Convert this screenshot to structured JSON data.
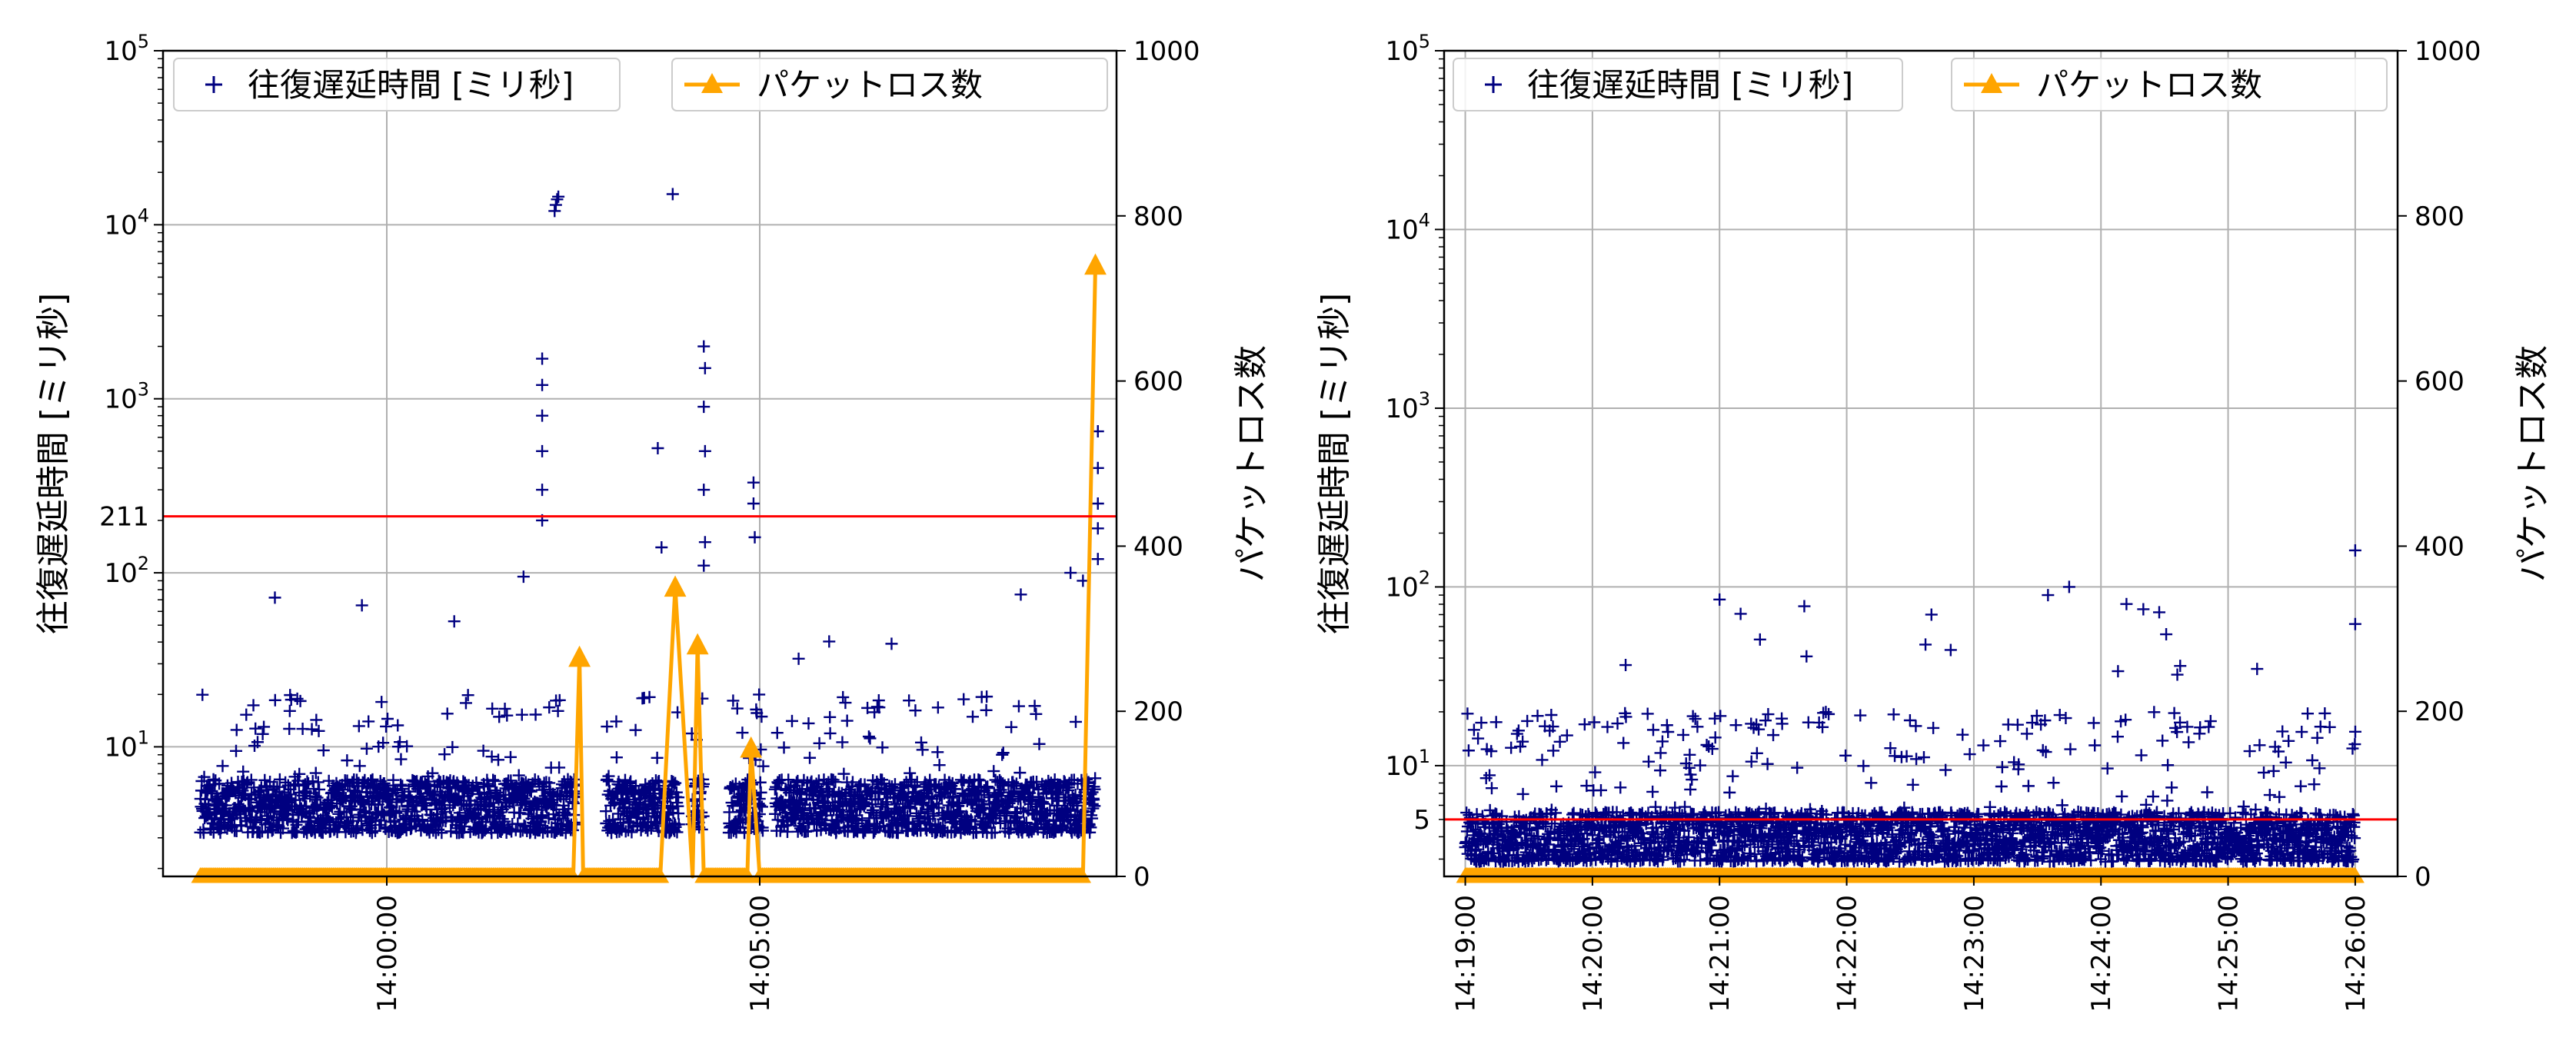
{
  "colors": {
    "rtt": "#000080",
    "loss": "#FFA500",
    "threshold": "#FF0000",
    "grid": "#B0B0B0",
    "axis": "#000000"
  },
  "chart_data": [
    {
      "type": "scatter",
      "ylabel_left": "往復遅延時間 [ミリ秒]",
      "ylabel_right": "パケットロス数",
      "ylog": true,
      "ylim_left": [
        1.8,
        100000
      ],
      "ylim_right": [
        0,
        1000
      ],
      "xlim": [
        "13:57:00",
        "14:09:47"
      ],
      "x_ticks": [
        "14:00:00",
        "14:05:00"
      ],
      "y_ticks_left": [
        {
          "value": 10,
          "base": "10",
          "exp": "1"
        },
        {
          "value": 100,
          "base": "10",
          "exp": "2"
        },
        {
          "value": 1000,
          "base": "10",
          "exp": "3"
        },
        {
          "value": 10000,
          "base": "10",
          "exp": "4"
        },
        {
          "value": 100000,
          "base": "10",
          "exp": "5"
        }
      ],
      "y_ticks_right": [
        "0",
        "200",
        "400",
        "600",
        "800",
        "1000"
      ],
      "y_ticks_right_values": [
        0,
        200,
        400,
        600,
        800,
        1000
      ],
      "grid": true,
      "legend": [
        "往復遅延時間 [ミリ秒]",
        "パケットロス数"
      ],
      "legend_placement": "top",
      "threshold": {
        "value": 211,
        "label": "211"
      },
      "rtt_series": {
        "name": "往復遅延時間 [ミリ秒]",
        "start": "13:57:30",
        "end": "14:09:30",
        "baseline_ms": [
          3.2,
          6.5
        ],
        "gaps": [
          [
            "14:02:33",
            "14:02:56"
          ],
          [
            "14:03:55",
            "14:04:05"
          ],
          [
            "14:04:15",
            "14:04:35"
          ],
          [
            "14:05:03",
            "14:05:12"
          ]
        ],
        "outliers_ms": [
          [
            "14:02:15",
            12000
          ],
          [
            "14:02:16",
            13000
          ],
          [
            "14:02:17",
            14000
          ],
          [
            "14:02:18",
            14500
          ],
          [
            "14:03:50",
            15000
          ],
          [
            "14:03:38",
            520
          ],
          [
            "14:03:41",
            140
          ],
          [
            "14:01:50",
            95
          ],
          [
            "14:02:05",
            1700
          ],
          [
            "14:02:05",
            1200
          ],
          [
            "14:02:05",
            800
          ],
          [
            "14:02:05",
            500
          ],
          [
            "14:02:05",
            300
          ],
          [
            "14:02:05",
            200
          ],
          [
            "14:04:15",
            2000
          ],
          [
            "14:04:16",
            1500
          ],
          [
            "14:04:15",
            900
          ],
          [
            "14:04:16",
            500
          ],
          [
            "14:04:15",
            300
          ],
          [
            "14:04:16",
            150
          ],
          [
            "14:04:15",
            110
          ],
          [
            "14:04:55",
            330
          ],
          [
            "14:04:55",
            250
          ],
          [
            "14:04:56",
            160
          ],
          [
            "14:09:32",
            650
          ],
          [
            "14:09:32",
            400
          ],
          [
            "14:09:32",
            250
          ],
          [
            "14:09:32",
            180
          ],
          [
            "14:09:32",
            120
          ],
          [
            "13:58:30",
            72
          ],
          [
            "13:59:40",
            65
          ],
          [
            "14:08:30",
            75
          ],
          [
            "14:09:10",
            100
          ],
          [
            "14:09:20",
            90
          ]
        ]
      },
      "loss_series": {
        "name": "パケットロス数",
        "points": [
          [
            "13:57:30",
            0
          ],
          [
            "14:02:30",
            0
          ],
          [
            "14:02:35",
            265
          ],
          [
            "14:02:38",
            0
          ],
          [
            "14:03:40",
            0
          ],
          [
            "14:03:52",
            350
          ],
          [
            "14:04:06",
            0
          ],
          [
            "14:04:10",
            280
          ],
          [
            "14:04:15",
            0
          ],
          [
            "14:04:50",
            0
          ],
          [
            "14:04:53",
            155
          ],
          [
            "14:05:00",
            0
          ],
          [
            "14:09:20",
            0
          ],
          [
            "14:09:30",
            740
          ]
        ]
      }
    },
    {
      "type": "scatter",
      "ylabel_left": "往復遅延時間 [ミリ秒]",
      "ylabel_right": "パケットロス数",
      "ylog": true,
      "ylim_left": [
        2.4,
        100000
      ],
      "ylim_right": [
        0,
        1000
      ],
      "xlim": [
        "14:18:50",
        "14:26:20"
      ],
      "x_ticks": [
        "14:19:00",
        "14:20:00",
        "14:21:00",
        "14:22:00",
        "14:23:00",
        "14:24:00",
        "14:25:00",
        "14:26:00"
      ],
      "y_ticks_left": [
        {
          "value": 10,
          "base": "10",
          "exp": "1"
        },
        {
          "value": 100,
          "base": "10",
          "exp": "2"
        },
        {
          "value": 1000,
          "base": "10",
          "exp": "3"
        },
        {
          "value": 10000,
          "base": "10",
          "exp": "4"
        },
        {
          "value": 100000,
          "base": "10",
          "exp": "5"
        }
      ],
      "y_ticks_right": [
        "0",
        "200",
        "400",
        "600",
        "800",
        "1000"
      ],
      "y_ticks_right_values": [
        0,
        200,
        400,
        600,
        800,
        1000
      ],
      "grid": true,
      "legend": [
        "往復遅延時間 [ミリ秒]",
        "パケットロス数"
      ],
      "legend_placement": "top",
      "threshold": {
        "value": 5,
        "label": "5"
      },
      "rtt_series": {
        "name": "往復遅延時間 [ミリ秒]",
        "start": "14:19:00",
        "end": "14:26:00",
        "baseline_ms": [
          2.9,
          5.5
        ],
        "gaps": [],
        "outliers_ms": [
          [
            "14:26:00",
            160
          ],
          [
            "14:26:00",
            62
          ],
          [
            "14:21:00",
            85
          ],
          [
            "14:23:45",
            100
          ],
          [
            "14:23:35",
            90
          ],
          [
            "14:21:40",
            78
          ],
          [
            "14:24:20",
            75
          ],
          [
            "14:22:40",
            70
          ]
        ]
      },
      "loss_series": {
        "name": "パケットロス数",
        "points": [
          [
            "14:19:00",
            0
          ],
          [
            "14:26:00",
            0
          ]
        ]
      }
    }
  ]
}
